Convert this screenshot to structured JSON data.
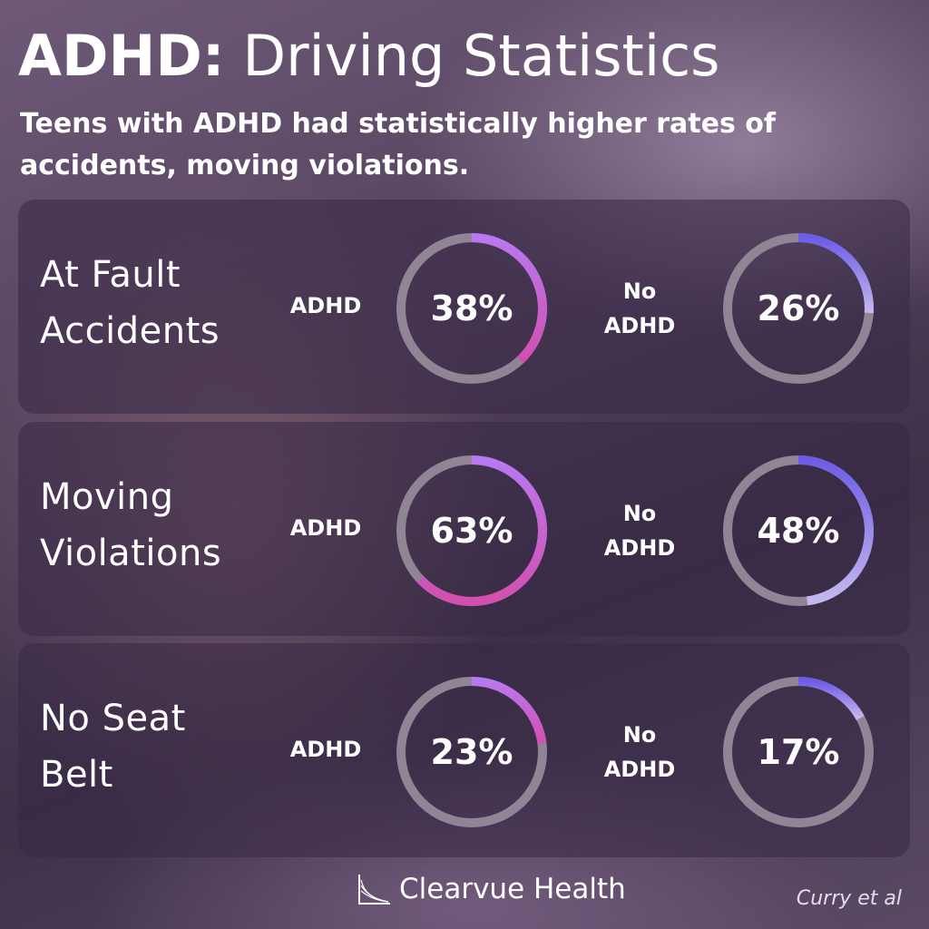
{
  "header": {
    "title_bold": "ADHD:",
    "title_rest": "Driving Statistics",
    "subtitle": "Teens with ADHD had statistically higher rates of accidents, moving violations."
  },
  "chart_data": {
    "type": "donut",
    "groups": [
      {
        "label": "ADHD",
        "color_start": "#b978f0",
        "color_end": "#d24fb0"
      },
      {
        "label_line1": "No",
        "label_line2": "ADHD",
        "color_start": "#6e5ce6",
        "color_end": "#c4b8ee"
      }
    ],
    "track_color": "#8f8595",
    "panels": [
      {
        "label_line1": "At Fault",
        "label_line2": "Accidents",
        "adhd": 38,
        "no_adhd": 26,
        "adhd_text": "38%",
        "no_adhd_text": "26%"
      },
      {
        "label_line1": "Moving",
        "label_line2": "Violations",
        "adhd": 63,
        "no_adhd": 48,
        "adhd_text": "63%",
        "no_adhd_text": "48%"
      },
      {
        "label_line1": "No Seat",
        "label_line2": "Belt",
        "adhd": 23,
        "no_adhd": 17,
        "adhd_text": "23%",
        "no_adhd_text": "17%"
      }
    ]
  },
  "footer": {
    "brand": "Clearvue Health",
    "citation": "Curry et al"
  }
}
